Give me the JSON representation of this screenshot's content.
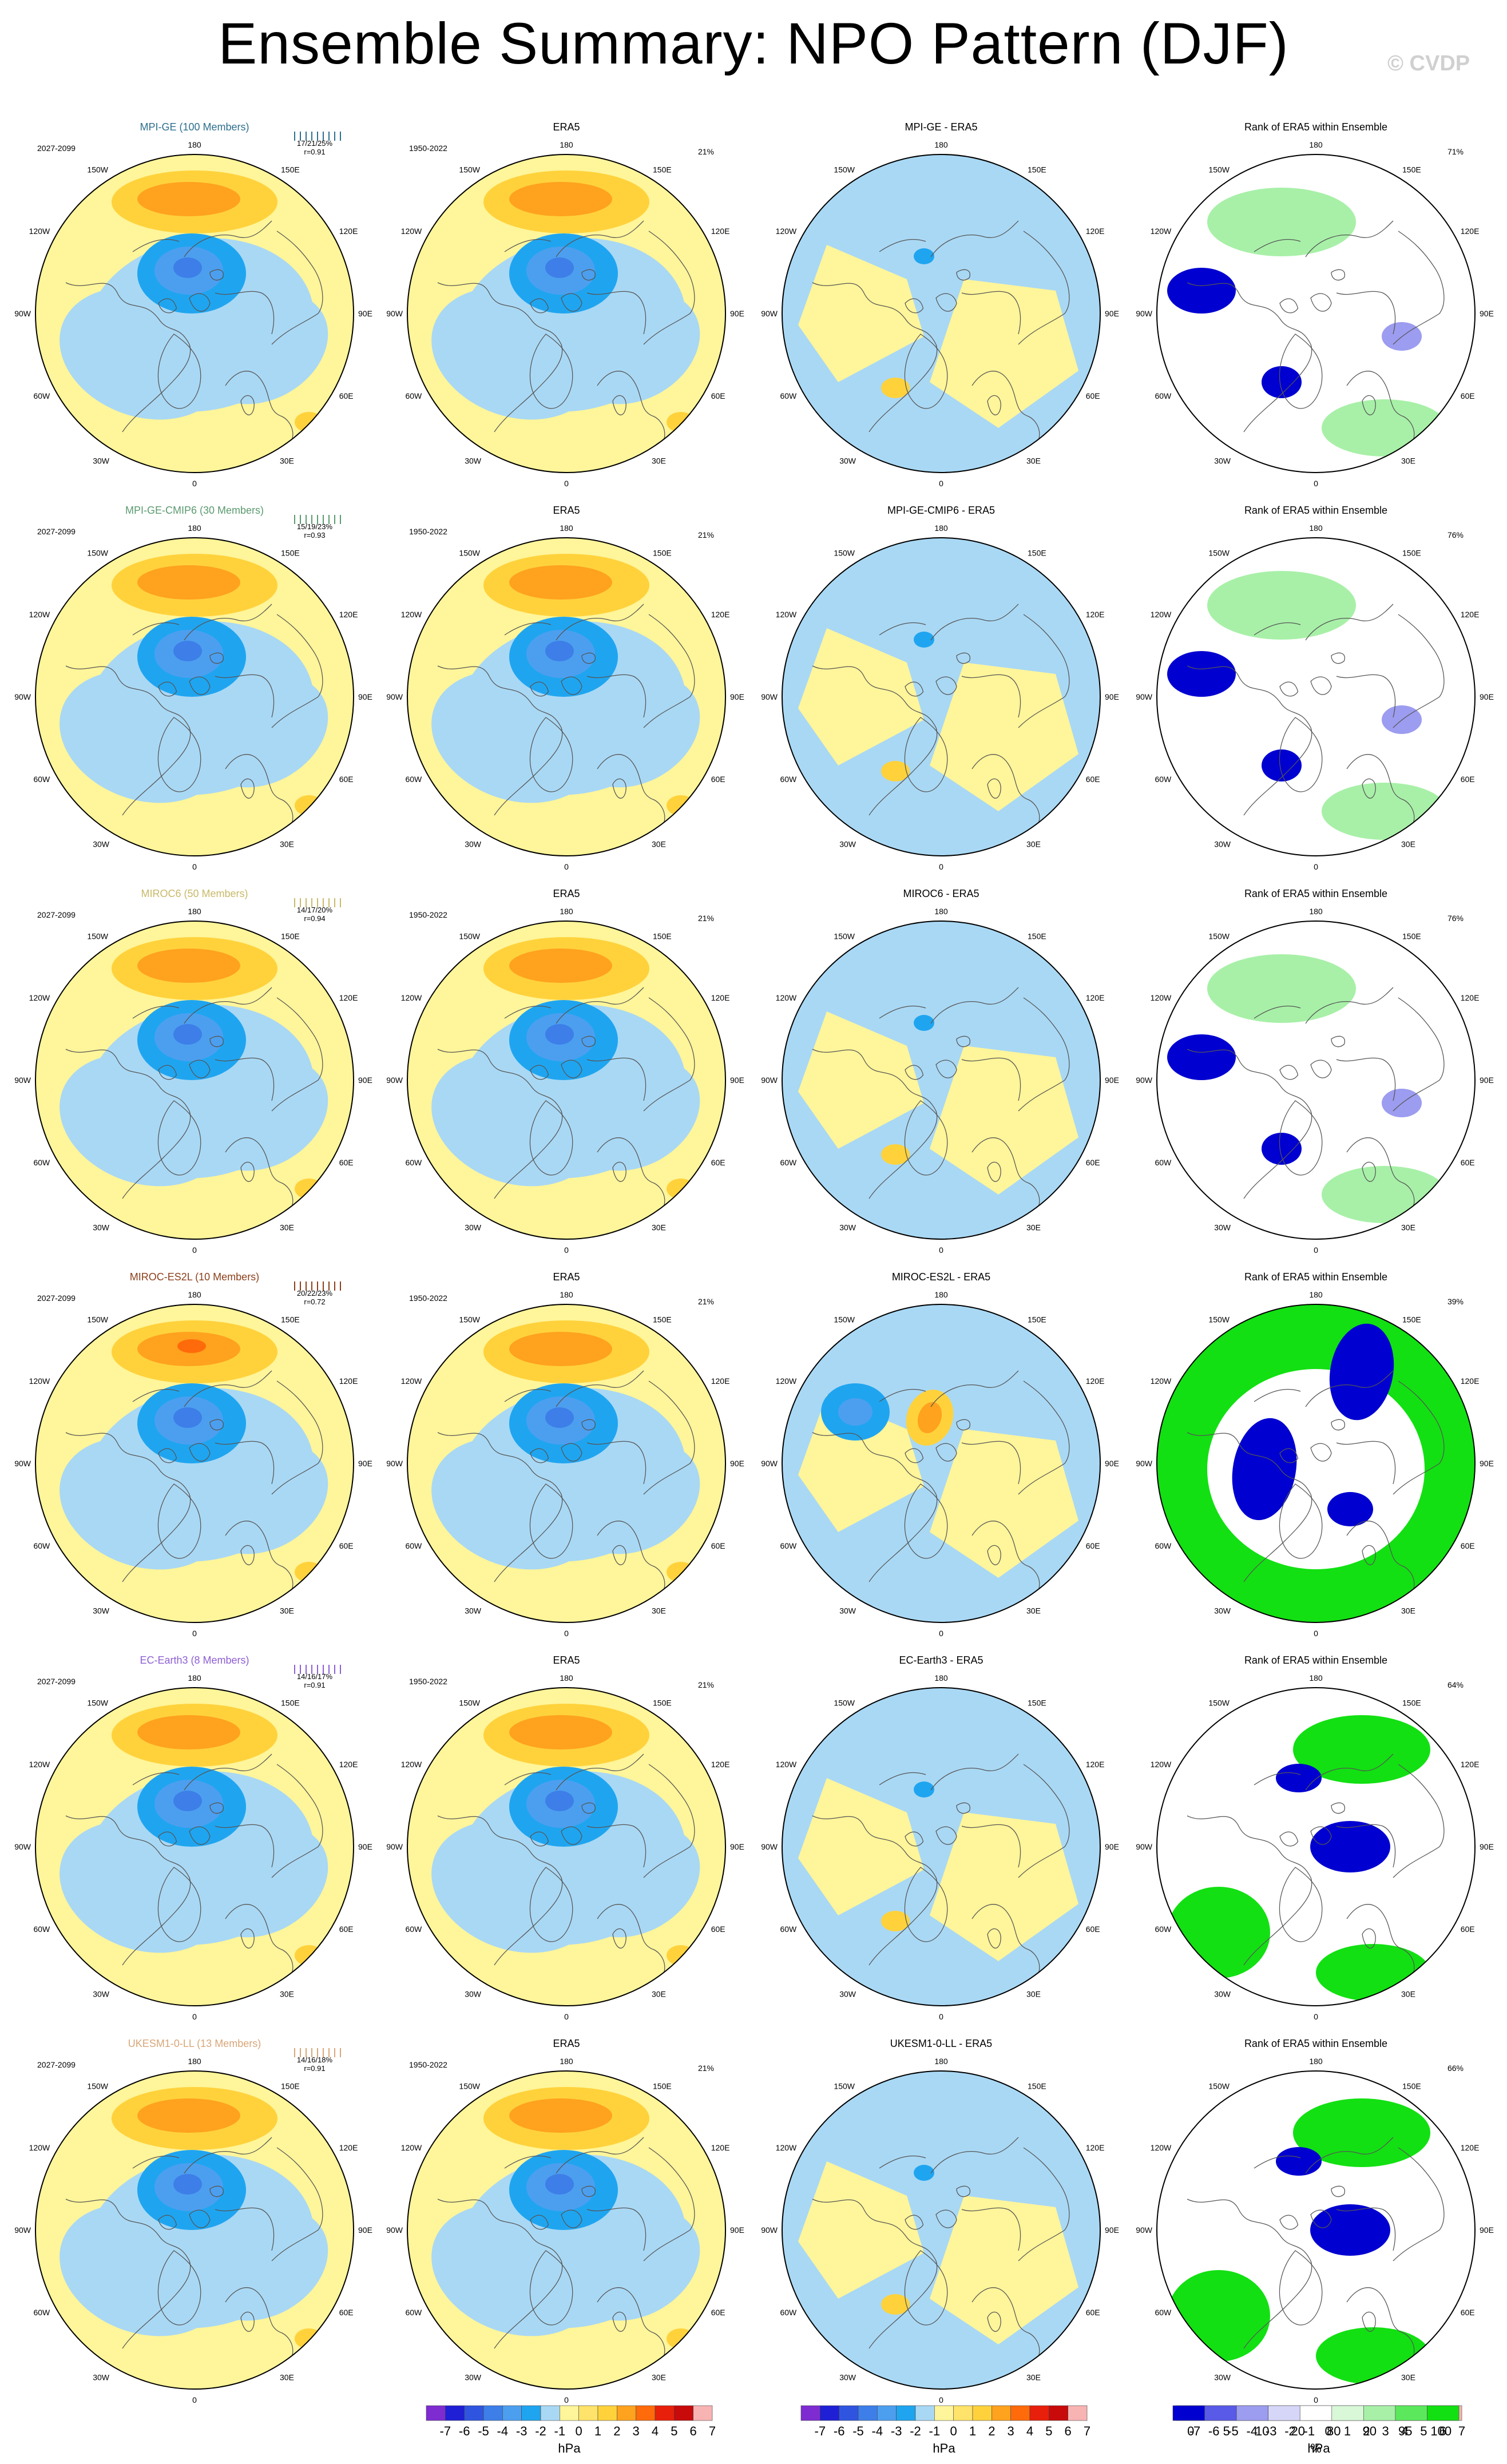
{
  "title": "Ensemble Summary: NPO Pattern (DJF)",
  "watermark": "© CVDP",
  "longitude_labels": {
    "top": "180",
    "bottom": "0",
    "upper_left": "150W",
    "upper_right": "150E",
    "left_upper": "120W",
    "right_upper": "120E",
    "left": "90W",
    "right": "90E",
    "left_lower": "60W",
    "right_lower": "60E",
    "lower_left": "30W",
    "lower_right": "30E"
  },
  "column_titles": {
    "era5": "ERA5",
    "rank": "Rank of ERA5 within Ensemble"
  },
  "periods": {
    "model": "2027-2099",
    "obs": "1950-2022"
  },
  "era5_pct": "21%",
  "colors": {
    "ensemble_title": [
      "#2e6f8e",
      "#5a9a6f",
      "#c9b96a",
      "#8c3f1a",
      "#8d5fd3",
      "#d8a679"
    ],
    "neg": [
      "#7e2bd1",
      "#1f1fd6",
      "#2f55e0",
      "#3d7ee8",
      "#4c9fef",
      "#1fa5f0",
      "#a9d8f4"
    ],
    "pos": [
      "#fff59a",
      "#ffe36a",
      "#ffd23c",
      "#ffa21e",
      "#ff6a0a",
      "#e81f0a",
      "#c80a0a",
      "#f8b3b3"
    ],
    "rank": [
      "#0000d0",
      "#5a5ae8",
      "#9c9cf0",
      "#d6d6f8",
      "#ffffff",
      "#d8f8d8",
      "#a8f0a8",
      "#5ce85c",
      "#12e012"
    ]
  },
  "rows": [
    {
      "ensemble": "MPI-GE (100 Members)",
      "stats": "17/21/25%",
      "r": "r=0.91",
      "diff": "MPI-GE - ERA5",
      "rank_pct": "71%"
    },
    {
      "ensemble": "MPI-GE-CMIP6 (30 Members)",
      "stats": "15/19/23%",
      "r": "r=0.93",
      "diff": "MPI-GE-CMIP6 - ERA5",
      "rank_pct": "76%"
    },
    {
      "ensemble": "MIROC6 (50 Members)",
      "stats": "14/17/20%",
      "r": "r=0.94",
      "diff": "MIROC6 - ERA5",
      "rank_pct": "76%"
    },
    {
      "ensemble": "MIROC-ES2L (10 Members)",
      "stats": "20/22/23%",
      "r": "r=0.72",
      "diff": "MIROC-ES2L - ERA5",
      "rank_pct": "39%"
    },
    {
      "ensemble": "EC-Earth3 (8 Members)",
      "stats": "14/16/17%",
      "r": "r=0.91",
      "diff": "EC-Earth3 - ERA5",
      "rank_pct": "64%"
    },
    {
      "ensemble": "UKESM1-0-LL (13 Members)",
      "stats": "14/16/18%",
      "r": "r=0.91",
      "diff": "UKESM1-0-LL - ERA5",
      "rank_pct": "66%"
    }
  ],
  "colorbar_hpa": {
    "ticks": [
      "-7",
      "-6",
      "-5",
      "-4",
      "-3",
      "-2",
      "-1",
      "0",
      "1",
      "2",
      "3",
      "4",
      "5",
      "6",
      "7"
    ],
    "unit": "hPa"
  },
  "colorbar_rank": {
    "ticks": [
      "0",
      "5",
      "10",
      "20",
      "80",
      "90",
      "95",
      "100"
    ],
    "unit": "%"
  }
}
